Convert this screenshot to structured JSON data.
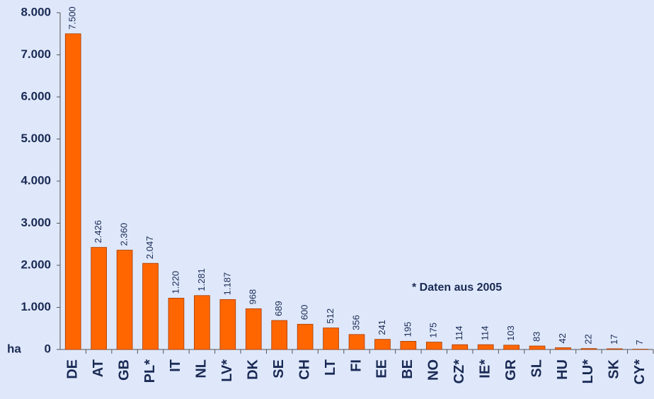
{
  "chart_data": {
    "type": "bar",
    "y_label": "ha",
    "annotation": "* Daten aus 2005",
    "categories": [
      "DE",
      "AT",
      "GB",
      "PL*",
      "IT",
      "NL",
      "LV*",
      "DK",
      "SE",
      "CH",
      "LT",
      "FI",
      "EE",
      "BE",
      "NO",
      "CZ*",
      "IE*",
      "GR",
      "SL",
      "HU",
      "LU*",
      "SK",
      "CY*"
    ],
    "values": [
      7500,
      2426,
      2360,
      2047,
      1220,
      1281,
      1187,
      968,
      689,
      600,
      512,
      356,
      241,
      195,
      175,
      114,
      114,
      103,
      83,
      42,
      22,
      17,
      7
    ],
    "value_labels": [
      "7.500",
      "2.426",
      "2.360",
      "2.047",
      "1.220",
      "1.281",
      "1.187",
      "968",
      "689",
      "600",
      "512",
      "356",
      "241",
      "195",
      "175",
      "114",
      "114",
      "103",
      "83",
      "42",
      "22",
      "17",
      "7"
    ],
    "color": "#ff6600",
    "ylim": [
      0,
      8000
    ],
    "yticks": [
      0,
      {
        "value": 1000,
        "label": "1.000"
      },
      {
        "value": 2000,
        "label": "2.000"
      },
      {
        "value": 3000,
        "label": "3.000"
      },
      {
        "value": 4000,
        "label": "4.000"
      },
      {
        "value": 5000,
        "label": "5.000"
      },
      {
        "value": 6000,
        "label": "6.000"
      },
      {
        "value": 7000,
        "label": "7.000"
      },
      {
        "value": 8000,
        "label": "8.000"
      }
    ],
    "grid": false
  }
}
